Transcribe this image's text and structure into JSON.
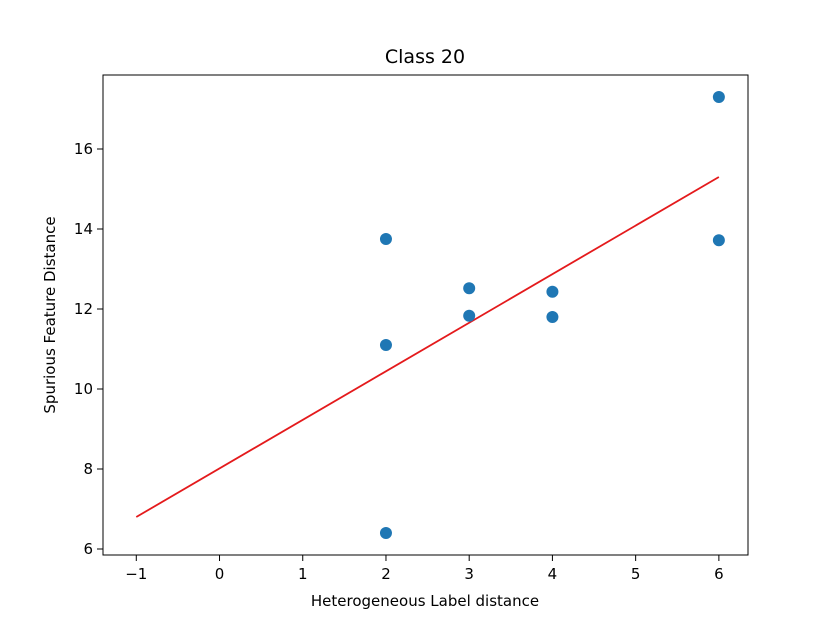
{
  "chart_data": {
    "type": "scatter",
    "title": "Class 20",
    "xlabel": "Heterogeneous Label distance",
    "ylabel": "Spurious Feature Distance",
    "xlim": [
      -1.4,
      6.35
    ],
    "ylim": [
      5.85,
      17.85
    ],
    "x_ticks": [
      -1,
      0,
      1,
      2,
      3,
      4,
      5,
      6
    ],
    "x_tick_labels": [
      "−1",
      "0",
      "1",
      "2",
      "3",
      "4",
      "5",
      "6"
    ],
    "y_ticks": [
      6,
      8,
      10,
      12,
      14,
      16
    ],
    "y_tick_labels": [
      "6",
      "8",
      "10",
      "12",
      "14",
      "16"
    ],
    "grid": false,
    "points": [
      {
        "x": 2,
        "y": 13.75
      },
      {
        "x": 2,
        "y": 11.1
      },
      {
        "x": 2,
        "y": 6.4
      },
      {
        "x": 3,
        "y": 12.52
      },
      {
        "x": 3,
        "y": 11.83
      },
      {
        "x": 4,
        "y": 12.43
      },
      {
        "x": 4,
        "y": 11.8
      },
      {
        "x": 6,
        "y": 17.3
      },
      {
        "x": 6,
        "y": 13.72
      }
    ],
    "fit_line": {
      "x": [
        -1,
        6
      ],
      "y": [
        6.8,
        15.3
      ]
    },
    "colors": {
      "points": "#1f77b4",
      "fit_line": "#e41a1c",
      "axes": "#000000"
    }
  }
}
